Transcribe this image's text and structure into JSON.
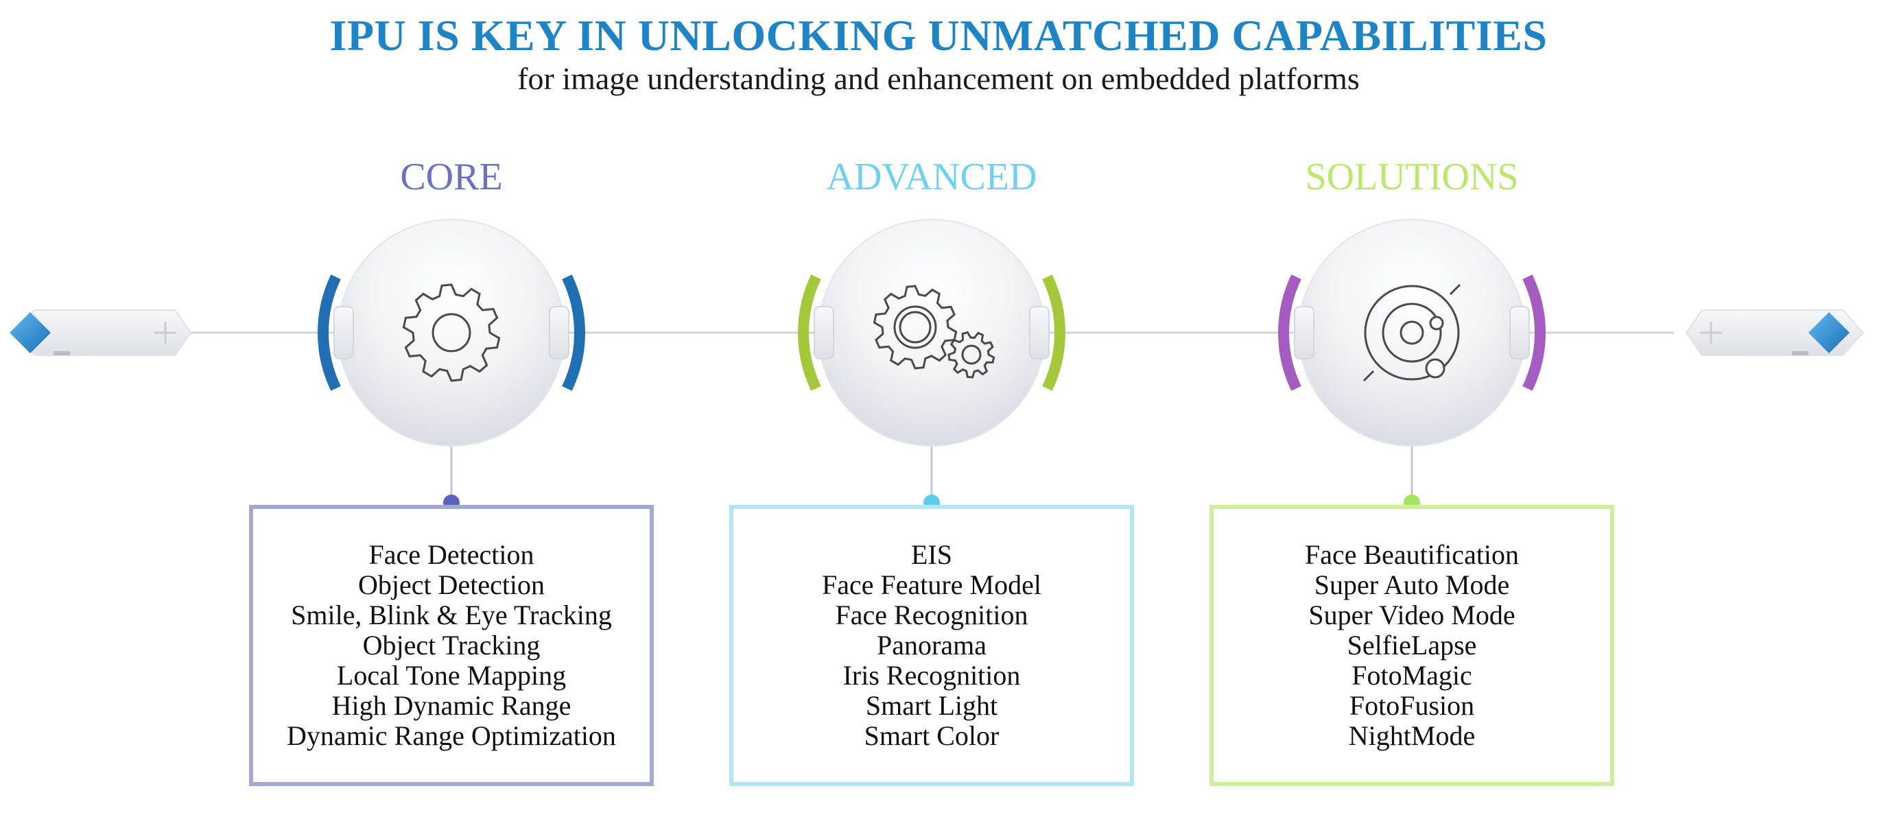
{
  "header": {
    "title": "IPU IS KEY IN UNLOCKING UNMATCHED CAPABILITIES",
    "subtitle": "for image understanding and enhancement on embedded platforms"
  },
  "stages": [
    {
      "heading": "CORE",
      "color": "#6b73c1",
      "border_color": "#a3a8cf",
      "dot_color": "#5a5fc0",
      "arc_color": "#1f6fb2",
      "icon": "single-gear-icon",
      "items": [
        "Face Detection",
        "Object Detection",
        "Smile, Blink & Eye Tracking",
        "Object Tracking",
        "Local Tone Mapping",
        "High Dynamic Range",
        "Dynamic Range Optimization"
      ]
    },
    {
      "heading": "ADVANCED",
      "color": "#6fd0ef",
      "border_color": "#b4e5f3",
      "dot_color": "#5ccbf0",
      "arc_color": "#a3c93a",
      "icon": "double-gear-icon",
      "items": [
        "EIS",
        "Face Feature Model",
        "Face Recognition",
        "Panorama",
        "Iris Recognition",
        "Smart Light",
        "Smart Color"
      ]
    },
    {
      "heading": "SOLUTIONS",
      "color": "#b9e86a",
      "border_color": "#cfee9c",
      "dot_color": "#a6e45c",
      "arc_color": "#a55bbf",
      "icon": "orbit-icon",
      "items": [
        "Face Beautification",
        "Super Auto Mode",
        "Super Video Mode",
        "SelfieLapse",
        "FotoMagic",
        "FotoFusion",
        "NightMode"
      ]
    }
  ],
  "end_markers": {
    "left_icon": "diamond-icon",
    "right_icon": "diamond-icon",
    "color": "#2a8fd6"
  }
}
